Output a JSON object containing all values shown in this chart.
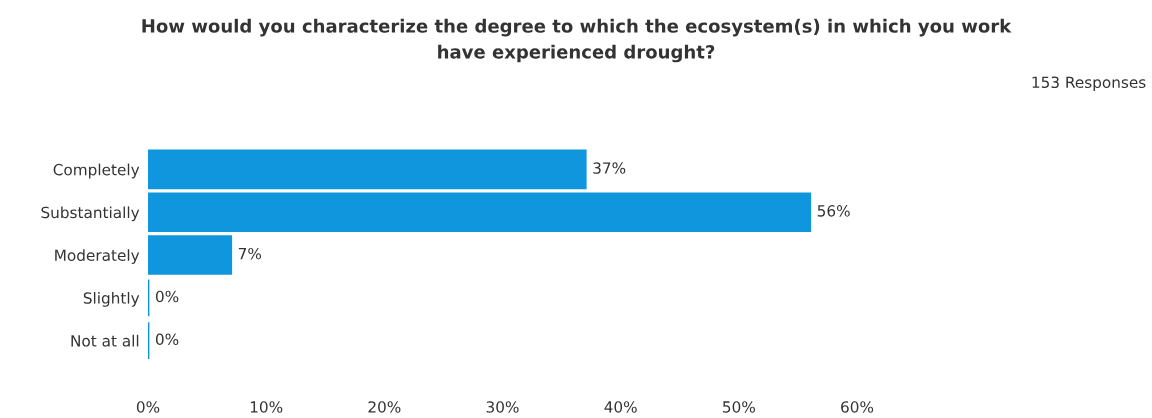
{
  "chart_data": {
    "type": "bar",
    "orientation": "horizontal",
    "title": "How would you characterize the degree to which the ecosystem(s) in which you work\nhave experienced drought?",
    "subtitle": "153 Responses",
    "categories": [
      "Completely",
      "Substantially",
      "Moderately",
      "Slightly",
      "Not at all"
    ],
    "values": [
      37,
      56,
      7,
      0,
      0
    ],
    "color": "#0f96dc",
    "value_labels": [
      "37%",
      "56%",
      "7%",
      "0%",
      "0%"
    ],
    "xlim": [
      0,
      60
    ],
    "xticks": [
      {
        "value": 0,
        "label": "0%"
      },
      {
        "value": 10,
        "label": "10%"
      },
      {
        "value": 20,
        "label": "20%"
      },
      {
        "value": 30,
        "label": "30%"
      },
      {
        "value": 40,
        "label": "40%"
      },
      {
        "value": 50,
        "label": "50%"
      },
      {
        "value": 60,
        "label": "60%"
      }
    ],
    "grid": false,
    "legend": false
  }
}
